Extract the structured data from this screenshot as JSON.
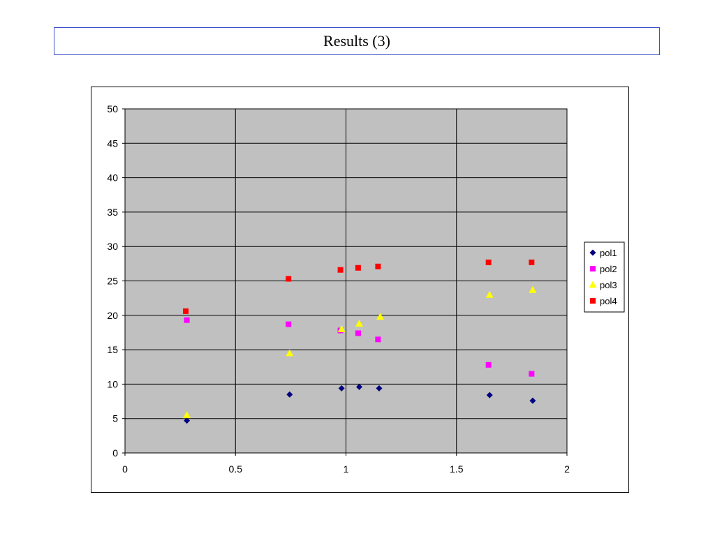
{
  "slide": {
    "title": "Results (3)"
  },
  "chart_data": {
    "type": "scatter",
    "title": "",
    "xlabel": "",
    "ylabel": "",
    "xlim": [
      0,
      2
    ],
    "ylim": [
      0,
      50
    ],
    "x_ticks": [
      "0",
      "0.5",
      "1",
      "1.5",
      "2"
    ],
    "y_ticks": [
      "0",
      "5",
      "10",
      "15",
      "20",
      "25",
      "30",
      "35",
      "40",
      "45",
      "50"
    ],
    "grid": true,
    "plot_background": "#c0c0c0",
    "legend_position": "right",
    "series": [
      {
        "name": "pol1",
        "marker": "diamond",
        "color": "#000080",
        "points": [
          [
            0.28,
            4.7
          ],
          [
            0.745,
            8.5
          ],
          [
            0.98,
            9.4
          ],
          [
            1.06,
            9.6
          ],
          [
            1.15,
            9.4
          ],
          [
            1.65,
            8.4
          ],
          [
            1.845,
            7.6
          ]
        ]
      },
      {
        "name": "pol2",
        "marker": "square",
        "color": "#ff00ff",
        "points": [
          [
            0.28,
            19.3
          ],
          [
            0.74,
            18.7
          ],
          [
            0.975,
            17.8
          ],
          [
            1.055,
            17.4
          ],
          [
            1.145,
            16.5
          ],
          [
            1.645,
            12.8
          ],
          [
            1.84,
            11.5
          ]
        ]
      },
      {
        "name": "pol3",
        "marker": "triangle",
        "color": "#ffff00",
        "points": [
          [
            0.28,
            5.5
          ],
          [
            0.745,
            14.5
          ],
          [
            0.98,
            18.0
          ],
          [
            1.06,
            18.8
          ],
          [
            1.155,
            19.8
          ],
          [
            1.65,
            23.0
          ],
          [
            1.845,
            23.7
          ]
        ]
      },
      {
        "name": "pol4",
        "marker": "square",
        "color": "#ff0000",
        "points": [
          [
            0.275,
            20.6
          ],
          [
            0.74,
            25.3
          ],
          [
            0.975,
            26.6
          ],
          [
            1.055,
            26.9
          ],
          [
            1.145,
            27.1
          ],
          [
            1.645,
            27.7
          ],
          [
            1.84,
            27.7
          ]
        ]
      }
    ]
  }
}
